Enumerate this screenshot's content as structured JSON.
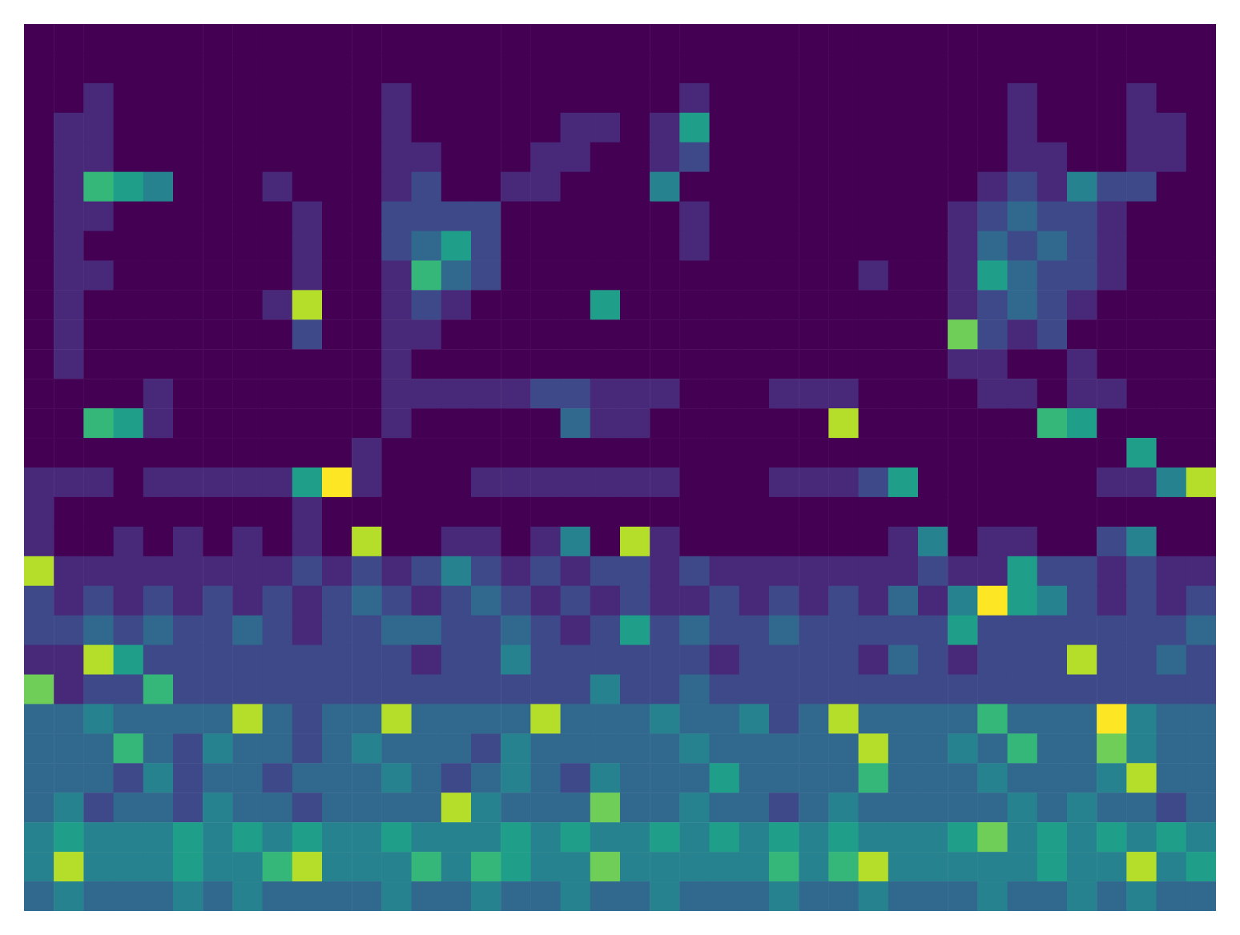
{
  "chart_data": {
    "type": "heatmap",
    "tick_labels": false,
    "zlim": [
      0,
      9
    ],
    "cells": [
      [
        0,
        0,
        0,
        0,
        0,
        0,
        0,
        0,
        0,
        0,
        0,
        0,
        0,
        0,
        0,
        0,
        0,
        0,
        0,
        0,
        0,
        0,
        0,
        0,
        0,
        0,
        0,
        0,
        0,
        0,
        0,
        0,
        0,
        0,
        0,
        0,
        0,
        0,
        0,
        0
      ],
      [
        0,
        0,
        0,
        0,
        0,
        0,
        0,
        0,
        0,
        0,
        0,
        0,
        0,
        0,
        0,
        0,
        0,
        0,
        0,
        0,
        0,
        0,
        0,
        0,
        0,
        0,
        0,
        0,
        0,
        0,
        0,
        0,
        0,
        0,
        0,
        0,
        0,
        0,
        0,
        0
      ],
      [
        0,
        0,
        1,
        0,
        0,
        0,
        0,
        0,
        0,
        0,
        0,
        0,
        1,
        0,
        0,
        0,
        0,
        0,
        0,
        0,
        0,
        0,
        1,
        0,
        0,
        0,
        0,
        0,
        0,
        0,
        0,
        0,
        0,
        1,
        0,
        0,
        0,
        1,
        0,
        0
      ],
      [
        0,
        1,
        1,
        0,
        0,
        0,
        0,
        0,
        0,
        0,
        0,
        0,
        1,
        0,
        0,
        0,
        0,
        0,
        1,
        1,
        0,
        1,
        5,
        0,
        0,
        0,
        0,
        0,
        0,
        0,
        0,
        0,
        0,
        1,
        0,
        0,
        0,
        1,
        1,
        0
      ],
      [
        0,
        1,
        1,
        0,
        0,
        0,
        0,
        0,
        0,
        0,
        0,
        0,
        1,
        1,
        0,
        0,
        0,
        1,
        1,
        0,
        0,
        1,
        2,
        0,
        0,
        0,
        0,
        0,
        0,
        0,
        0,
        0,
        0,
        1,
        1,
        0,
        0,
        1,
        1,
        0
      ],
      [
        0,
        1,
        6,
        5,
        4,
        0,
        0,
        0,
        1,
        0,
        0,
        0,
        1,
        2,
        0,
        0,
        1,
        1,
        0,
        0,
        0,
        4,
        0,
        0,
        0,
        0,
        0,
        0,
        0,
        0,
        0,
        0,
        1,
        2,
        1,
        4,
        2,
        2,
        0,
        0
      ],
      [
        0,
        1,
        1,
        0,
        0,
        0,
        0,
        0,
        0,
        1,
        0,
        0,
        2,
        2,
        2,
        2,
        0,
        0,
        0,
        0,
        0,
        0,
        1,
        0,
        0,
        0,
        0,
        0,
        0,
        0,
        0,
        1,
        2,
        3,
        2,
        2,
        1,
        0,
        0,
        0
      ],
      [
        0,
        1,
        0,
        0,
        0,
        0,
        0,
        0,
        0,
        1,
        0,
        0,
        2,
        3,
        5,
        2,
        0,
        0,
        0,
        0,
        0,
        0,
        1,
        0,
        0,
        0,
        0,
        0,
        0,
        0,
        0,
        1,
        3,
        2,
        3,
        2,
        1,
        0,
        0,
        0
      ],
      [
        0,
        1,
        1,
        0,
        0,
        0,
        0,
        0,
        0,
        1,
        0,
        0,
        1,
        6,
        3,
        2,
        0,
        0,
        0,
        0,
        0,
        0,
        0,
        0,
        0,
        0,
        0,
        0,
        1,
        0,
        0,
        1,
        5,
        3,
        2,
        2,
        1,
        0,
        0,
        0
      ],
      [
        0,
        1,
        0,
        0,
        0,
        0,
        0,
        0,
        1,
        8,
        0,
        0,
        1,
        2,
        1,
        0,
        0,
        0,
        0,
        5,
        0,
        0,
        0,
        0,
        0,
        0,
        0,
        0,
        0,
        0,
        0,
        1,
        2,
        3,
        2,
        1,
        0,
        0,
        0,
        0
      ],
      [
        0,
        1,
        0,
        0,
        0,
        0,
        0,
        0,
        0,
        2,
        0,
        0,
        1,
        1,
        0,
        0,
        0,
        0,
        0,
        0,
        0,
        0,
        0,
        0,
        0,
        0,
        0,
        0,
        0,
        0,
        0,
        7,
        2,
        1,
        2,
        0,
        0,
        0,
        0,
        0
      ],
      [
        0,
        1,
        0,
        0,
        0,
        0,
        0,
        0,
        0,
        0,
        0,
        0,
        1,
        0,
        0,
        0,
        0,
        0,
        0,
        0,
        0,
        0,
        0,
        0,
        0,
        0,
        0,
        0,
        0,
        0,
        0,
        1,
        1,
        0,
        0,
        1,
        0,
        0,
        0,
        0
      ],
      [
        0,
        0,
        0,
        0,
        1,
        0,
        0,
        0,
        0,
        0,
        0,
        0,
        1,
        1,
        1,
        1,
        1,
        2,
        2,
        1,
        1,
        1,
        0,
        0,
        0,
        1,
        1,
        1,
        0,
        0,
        0,
        0,
        1,
        1,
        0,
        1,
        1,
        0,
        0,
        0
      ],
      [
        0,
        0,
        6,
        5,
        1,
        0,
        0,
        0,
        0,
        0,
        0,
        0,
        1,
        0,
        0,
        0,
        0,
        0,
        3,
        1,
        1,
        0,
        0,
        0,
        0,
        0,
        0,
        8,
        0,
        0,
        0,
        0,
        0,
        0,
        6,
        5,
        0,
        0,
        0,
        0
      ],
      [
        0,
        0,
        0,
        0,
        0,
        0,
        0,
        0,
        0,
        0,
        0,
        1,
        0,
        0,
        0,
        0,
        0,
        0,
        0,
        0,
        0,
        0,
        0,
        0,
        0,
        0,
        0,
        0,
        0,
        0,
        0,
        0,
        0,
        0,
        0,
        0,
        0,
        5,
        0,
        0
      ],
      [
        1,
        1,
        1,
        0,
        1,
        1,
        1,
        1,
        1,
        5,
        9,
        1,
        0,
        0,
        0,
        1,
        1,
        1,
        1,
        1,
        1,
        1,
        0,
        0,
        0,
        1,
        1,
        1,
        2,
        5,
        0,
        0,
        0,
        0,
        0,
        0,
        1,
        1,
        4,
        8
      ],
      [
        1,
        0,
        0,
        0,
        0,
        0,
        0,
        0,
        0,
        1,
        0,
        0,
        0,
        0,
        0,
        0,
        0,
        0,
        0,
        0,
        0,
        0,
        0,
        0,
        0,
        0,
        0,
        0,
        0,
        0,
        0,
        0,
        0,
        0,
        0,
        0,
        0,
        0,
        0,
        0
      ],
      [
        1,
        0,
        0,
        1,
        0,
        1,
        0,
        1,
        0,
        1,
        0,
        8,
        0,
        0,
        1,
        1,
        0,
        1,
        4,
        0,
        8,
        1,
        0,
        0,
        0,
        0,
        0,
        0,
        0,
        1,
        4,
        0,
        1,
        1,
        0,
        0,
        2,
        4,
        0,
        0
      ],
      [
        8,
        1,
        1,
        1,
        1,
        1,
        1,
        1,
        1,
        2,
        1,
        2,
        1,
        2,
        4,
        2,
        1,
        2,
        1,
        2,
        2,
        1,
        2,
        1,
        1,
        1,
        1,
        1,
        1,
        1,
        2,
        1,
        1,
        5,
        2,
        2,
        1,
        2,
        1,
        1
      ],
      [
        2,
        1,
        2,
        1,
        2,
        1,
        2,
        1,
        2,
        1,
        2,
        3,
        2,
        1,
        2,
        3,
        2,
        1,
        2,
        1,
        2,
        1,
        1,
        2,
        1,
        2,
        1,
        2,
        1,
        3,
        1,
        4,
        9,
        5,
        4,
        2,
        1,
        2,
        1,
        2
      ],
      [
        2,
        2,
        3,
        2,
        3,
        2,
        2,
        3,
        2,
        1,
        2,
        2,
        3,
        3,
        2,
        2,
        3,
        2,
        1,
        2,
        5,
        2,
        3,
        2,
        2,
        3,
        2,
        2,
        2,
        2,
        2,
        5,
        2,
        2,
        2,
        2,
        2,
        2,
        2,
        3
      ],
      [
        1,
        1,
        8,
        5,
        2,
        2,
        2,
        2,
        2,
        2,
        2,
        2,
        2,
        1,
        2,
        2,
        4,
        2,
        2,
        2,
        2,
        2,
        2,
        1,
        2,
        2,
        2,
        2,
        1,
        3,
        2,
        1,
        2,
        2,
        2,
        8,
        2,
        2,
        3,
        2
      ],
      [
        7,
        1,
        2,
        2,
        6,
        2,
        2,
        2,
        2,
        2,
        2,
        2,
        2,
        2,
        2,
        2,
        2,
        2,
        2,
        4,
        2,
        2,
        3,
        2,
        2,
        2,
        2,
        2,
        2,
        2,
        2,
        2,
        2,
        2,
        2,
        2,
        2,
        2,
        2,
        2
      ],
      [
        3,
        3,
        4,
        3,
        3,
        3,
        3,
        8,
        3,
        2,
        3,
        3,
        8,
        3,
        3,
        3,
        3,
        8,
        3,
        3,
        3,
        4,
        3,
        3,
        4,
        2,
        3,
        8,
        3,
        3,
        3,
        3,
        6,
        3,
        3,
        3,
        9,
        4,
        3,
        3
      ],
      [
        3,
        3,
        3,
        6,
        3,
        2,
        4,
        3,
        3,
        2,
        3,
        4,
        3,
        3,
        3,
        2,
        4,
        3,
        3,
        3,
        3,
        3,
        4,
        3,
        3,
        3,
        3,
        3,
        8,
        3,
        3,
        4,
        3,
        6,
        3,
        3,
        7,
        4,
        3,
        3
      ],
      [
        3,
        3,
        3,
        2,
        4,
        2,
        3,
        3,
        2,
        3,
        3,
        3,
        4,
        3,
        2,
        3,
        4,
        3,
        2,
        4,
        3,
        3,
        3,
        5,
        3,
        3,
        3,
        3,
        6,
        3,
        3,
        3,
        4,
        3,
        3,
        3,
        4,
        8,
        3,
        3
      ],
      [
        3,
        4,
        2,
        3,
        3,
        2,
        4,
        3,
        3,
        2,
        3,
        3,
        3,
        3,
        8,
        4,
        3,
        3,
        3,
        7,
        3,
        3,
        4,
        3,
        3,
        2,
        3,
        4,
        3,
        3,
        3,
        3,
        3,
        4,
        3,
        4,
        3,
        3,
        2,
        3
      ],
      [
        4,
        5,
        4,
        4,
        4,
        5,
        4,
        5,
        4,
        5,
        4,
        4,
        5,
        4,
        4,
        4,
        5,
        4,
        5,
        4,
        4,
        5,
        4,
        5,
        4,
        5,
        4,
        5,
        4,
        4,
        4,
        5,
        7,
        4,
        5,
        4,
        5,
        4,
        5,
        4
      ],
      [
        4,
        8,
        4,
        4,
        4,
        5,
        4,
        4,
        6,
        8,
        4,
        4,
        4,
        6,
        4,
        6,
        5,
        4,
        4,
        7,
        4,
        4,
        4,
        4,
        4,
        6,
        4,
        6,
        8,
        4,
        4,
        4,
        4,
        4,
        5,
        4,
        4,
        8,
        4,
        5
      ],
      [
        3,
        4,
        3,
        3,
        3,
        4,
        3,
        4,
        3,
        3,
        3,
        3,
        4,
        3,
        3,
        4,
        3,
        3,
        4,
        3,
        3,
        4,
        3,
        3,
        3,
        4,
        3,
        3,
        4,
        3,
        3,
        3,
        4,
        3,
        3,
        4,
        3,
        4,
        3,
        3
      ]
    ]
  }
}
